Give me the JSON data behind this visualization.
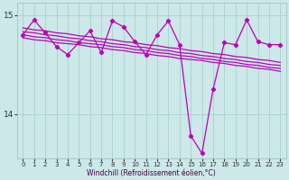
{
  "title": "",
  "xlabel": "Windchill (Refroidissement éolien,°C)",
  "ylabel": "",
  "bg_color": "#cce8e8",
  "grid_color": "#aacfcf",
  "line_color": "#bb00bb",
  "xlim": [
    -0.5,
    23.5
  ],
  "ylim": [
    13.55,
    15.12
  ],
  "yticks": [
    14,
    15
  ],
  "xticks": [
    0,
    1,
    2,
    3,
    4,
    5,
    6,
    7,
    8,
    9,
    10,
    11,
    12,
    13,
    14,
    15,
    16,
    17,
    18,
    19,
    20,
    21,
    22,
    23
  ],
  "main_y": [
    14.8,
    14.95,
    14.82,
    14.68,
    14.6,
    14.72,
    14.84,
    14.62,
    14.94,
    14.88,
    14.73,
    14.6,
    14.8,
    14.94,
    14.7,
    13.78,
    13.6,
    14.25,
    14.72,
    14.7,
    14.95,
    14.73,
    14.7,
    14.7
  ],
  "trend1_y": [
    14.87,
    14.85,
    14.84,
    14.82,
    14.81,
    14.79,
    14.78,
    14.76,
    14.75,
    14.73,
    14.72,
    14.7,
    14.69,
    14.67,
    14.66,
    14.64,
    14.63,
    14.61,
    14.6,
    14.58,
    14.57,
    14.55,
    14.54,
    14.52
  ],
  "trend2_y": [
    14.83,
    14.82,
    14.8,
    14.79,
    14.77,
    14.76,
    14.74,
    14.73,
    14.71,
    14.7,
    14.68,
    14.67,
    14.65,
    14.64,
    14.62,
    14.61,
    14.59,
    14.58,
    14.56,
    14.55,
    14.53,
    14.52,
    14.5,
    14.49
  ],
  "trend3_y": [
    14.8,
    14.78,
    14.77,
    14.75,
    14.74,
    14.72,
    14.71,
    14.7,
    14.68,
    14.67,
    14.65,
    14.64,
    14.62,
    14.61,
    14.59,
    14.58,
    14.56,
    14.55,
    14.53,
    14.52,
    14.5,
    14.49,
    14.47,
    14.46
  ],
  "trend4_y": [
    14.77,
    14.75,
    14.74,
    14.72,
    14.71,
    14.7,
    14.68,
    14.67,
    14.65,
    14.64,
    14.62,
    14.61,
    14.59,
    14.58,
    14.56,
    14.55,
    14.54,
    14.52,
    14.51,
    14.49,
    14.48,
    14.46,
    14.45,
    14.43
  ]
}
